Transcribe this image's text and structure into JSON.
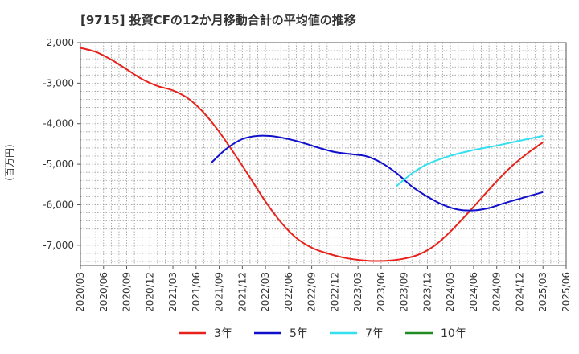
{
  "chart_data": {
    "type": "line",
    "title": "[9715]  投資CFの12か月移動合計の平均値の推移",
    "ylabel": "(百万円)",
    "xlabel": "",
    "ylim": [
      -7500,
      -2000
    ],
    "yticks": [
      -2000,
      -3000,
      -4000,
      -5000,
      -6000,
      -7000
    ],
    "ytick_labels": [
      "-2,000",
      "-3,000",
      "-4,000",
      "-5,000",
      "-6,000",
      "-7,000"
    ],
    "x_categories": [
      "2020/03",
      "2020/06",
      "2020/09",
      "2020/12",
      "2021/03",
      "2021/06",
      "2021/09",
      "2021/12",
      "2022/03",
      "2022/06",
      "2022/09",
      "2022/12",
      "2023/03",
      "2023/06",
      "2023/09",
      "2023/12",
      "2024/03",
      "2024/06",
      "2024/09",
      "2024/12",
      "2025/03",
      "2025/06"
    ],
    "grid": true,
    "legend_position": "bottom",
    "series": [
      {
        "name": "3年",
        "color": "#e8221b",
        "points": [
          [
            "2020/03",
            -2130
          ],
          [
            "2020/05",
            -2230
          ],
          [
            "2020/07",
            -2420
          ],
          [
            "2020/09",
            -2660
          ],
          [
            "2020/11",
            -2900
          ],
          [
            "2021/01",
            -3070
          ],
          [
            "2021/03",
            -3180
          ],
          [
            "2021/05",
            -3380
          ],
          [
            "2021/07",
            -3730
          ],
          [
            "2021/09",
            -4200
          ],
          [
            "2021/11",
            -4750
          ],
          [
            "2022/01",
            -5330
          ],
          [
            "2022/03",
            -5920
          ],
          [
            "2022/05",
            -6430
          ],
          [
            "2022/07",
            -6820
          ],
          [
            "2022/09",
            -7060
          ],
          [
            "2022/11",
            -7200
          ],
          [
            "2023/01",
            -7300
          ],
          [
            "2023/03",
            -7360
          ],
          [
            "2023/05",
            -7390
          ],
          [
            "2023/07",
            -7380
          ],
          [
            "2023/09",
            -7330
          ],
          [
            "2023/11",
            -7220
          ],
          [
            "2024/01",
            -7000
          ],
          [
            "2024/03",
            -6660
          ],
          [
            "2024/05",
            -6260
          ],
          [
            "2024/07",
            -5840
          ],
          [
            "2024/09",
            -5420
          ],
          [
            "2024/11",
            -5040
          ],
          [
            "2025/01",
            -4730
          ],
          [
            "2025/03",
            -4460
          ]
        ]
      },
      {
        "name": "5年",
        "color": "#1010cc",
        "points": [
          [
            "2021/08",
            -4960
          ],
          [
            "2021/10",
            -4610
          ],
          [
            "2021/12",
            -4380
          ],
          [
            "2022/02",
            -4300
          ],
          [
            "2022/04",
            -4310
          ],
          [
            "2022/06",
            -4380
          ],
          [
            "2022/08",
            -4480
          ],
          [
            "2022/10",
            -4600
          ],
          [
            "2022/12",
            -4700
          ],
          [
            "2023/02",
            -4750
          ],
          [
            "2023/04",
            -4800
          ],
          [
            "2023/06",
            -4960
          ],
          [
            "2023/08",
            -5220
          ],
          [
            "2023/10",
            -5550
          ],
          [
            "2023/12",
            -5800
          ],
          [
            "2024/02",
            -6000
          ],
          [
            "2024/04",
            -6120
          ],
          [
            "2024/06",
            -6140
          ],
          [
            "2024/08",
            -6080
          ],
          [
            "2024/10",
            -5960
          ],
          [
            "2024/12",
            -5850
          ],
          [
            "2025/03",
            -5690
          ]
        ]
      },
      {
        "name": "7年",
        "color": "#33e0f0",
        "points": [
          [
            "2023/08",
            -5540
          ],
          [
            "2023/10",
            -5230
          ],
          [
            "2023/12",
            -5000
          ],
          [
            "2024/03",
            -4790
          ],
          [
            "2024/06",
            -4650
          ],
          [
            "2024/09",
            -4540
          ],
          [
            "2024/12",
            -4420
          ],
          [
            "2025/03",
            -4300
          ]
        ]
      },
      {
        "name": "10年",
        "color": "#228b22",
        "points": []
      }
    ]
  }
}
